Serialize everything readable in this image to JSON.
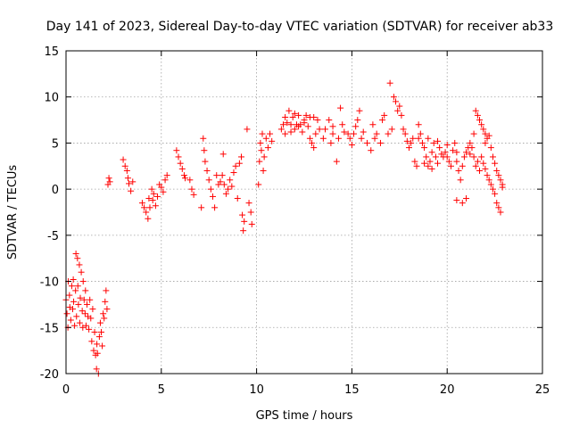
{
  "chart_data": {
    "type": "scatter",
    "title": "Day 141 of 2023, Sidereal Day-to-day VTEC variation (SDTVAR) for receiver ab33",
    "xlabel": "GPS time / hours",
    "ylabel": "SDTVAR / TECUs",
    "xlim": [
      0,
      25
    ],
    "ylim": [
      -20,
      15
    ],
    "xticks": [
      "0",
      "5",
      "10",
      "15",
      "20",
      "25"
    ],
    "yticks": [
      "-20",
      "-15",
      "-10",
      "-5",
      "0",
      "5",
      "10",
      "15"
    ],
    "grid": true,
    "marker": "+",
    "color": "#ff0000",
    "series": [
      {
        "name": "SDTVAR",
        "points": [
          [
            0.0,
            -12.0
          ],
          [
            0.05,
            -13.5
          ],
          [
            0.1,
            -15.0
          ],
          [
            0.12,
            -10.0
          ],
          [
            0.18,
            -11.5
          ],
          [
            0.2,
            -12.8
          ],
          [
            0.25,
            -14.2
          ],
          [
            0.3,
            -10.5
          ],
          [
            0.35,
            -13.0
          ],
          [
            0.38,
            -9.8
          ],
          [
            0.4,
            -12.2
          ],
          [
            0.45,
            -14.8
          ],
          [
            0.5,
            -11.0
          ],
          [
            0.52,
            -7.0
          ],
          [
            0.55,
            -13.8
          ],
          [
            0.6,
            -7.5
          ],
          [
            0.62,
            -10.5
          ],
          [
            0.65,
            -12.5
          ],
          [
            0.7,
            -8.2
          ],
          [
            0.72,
            -14.5
          ],
          [
            0.75,
            -11.8
          ],
          [
            0.8,
            -9.0
          ],
          [
            0.85,
            -13.2
          ],
          [
            0.88,
            -15.0
          ],
          [
            0.9,
            -10.0
          ],
          [
            0.95,
            -12.0
          ],
          [
            1.0,
            -13.5
          ],
          [
            1.02,
            -11.0
          ],
          [
            1.05,
            -14.8
          ],
          [
            1.1,
            -12.5
          ],
          [
            1.15,
            -13.8
          ],
          [
            1.2,
            -15.2
          ],
          [
            1.25,
            -12.0
          ],
          [
            1.3,
            -14.0
          ],
          [
            1.35,
            -16.5
          ],
          [
            1.4,
            -13.0
          ],
          [
            1.45,
            -17.5
          ],
          [
            1.5,
            -15.5
          ],
          [
            1.55,
            -18.0
          ],
          [
            1.6,
            -19.5
          ],
          [
            1.62,
            -16.8
          ],
          [
            1.65,
            -17.8
          ],
          [
            1.7,
            -20.0
          ],
          [
            1.75,
            -16.0
          ],
          [
            1.8,
            -14.5
          ],
          [
            1.85,
            -15.5
          ],
          [
            1.9,
            -17.0
          ],
          [
            1.95,
            -13.5
          ],
          [
            2.0,
            -14.0
          ],
          [
            2.05,
            -12.2
          ],
          [
            2.1,
            -11.0
          ],
          [
            2.15,
            -13.0
          ],
          [
            2.2,
            0.5
          ],
          [
            2.25,
            1.2
          ],
          [
            2.3,
            0.8
          ],
          [
            3.0,
            3.2
          ],
          [
            3.1,
            2.5
          ],
          [
            3.2,
            2.0
          ],
          [
            3.25,
            1.2
          ],
          [
            3.3,
            0.6
          ],
          [
            3.4,
            -0.2
          ],
          [
            3.5,
            0.8
          ],
          [
            4.0,
            -1.5
          ],
          [
            4.1,
            -2.0
          ],
          [
            4.2,
            -2.5
          ],
          [
            4.3,
            -3.2
          ],
          [
            4.35,
            -1.0
          ],
          [
            4.4,
            -2.0
          ],
          [
            4.5,
            0.0
          ],
          [
            4.55,
            -1.2
          ],
          [
            4.6,
            -0.5
          ],
          [
            4.7,
            -1.8
          ],
          [
            4.8,
            -0.8
          ],
          [
            4.9,
            0.5
          ],
          [
            5.0,
            0.2
          ],
          [
            5.1,
            -0.3
          ],
          [
            5.2,
            1.0
          ],
          [
            5.3,
            1.5
          ],
          [
            5.8,
            4.2
          ],
          [
            5.9,
            3.5
          ],
          [
            6.0,
            2.8
          ],
          [
            6.1,
            2.2
          ],
          [
            6.2,
            1.5
          ],
          [
            6.25,
            1.2
          ],
          [
            6.5,
            1.0
          ],
          [
            6.6,
            0.0
          ],
          [
            6.7,
            -0.6
          ],
          [
            7.1,
            -2.0
          ],
          [
            7.2,
            5.5
          ],
          [
            7.25,
            4.2
          ],
          [
            7.3,
            3.0
          ],
          [
            7.4,
            2.0
          ],
          [
            7.5,
            1.0
          ],
          [
            7.6,
            0.0
          ],
          [
            7.7,
            -0.8
          ],
          [
            7.8,
            -2.0
          ],
          [
            7.9,
            1.5
          ],
          [
            8.0,
            0.5
          ],
          [
            8.1,
            0.8
          ],
          [
            8.2,
            1.5
          ],
          [
            8.25,
            3.8
          ],
          [
            8.3,
            0.5
          ],
          [
            8.4,
            -0.5
          ],
          [
            8.5,
            0.0
          ],
          [
            8.6,
            1.0
          ],
          [
            8.7,
            0.3
          ],
          [
            8.8,
            1.8
          ],
          [
            8.9,
            2.5
          ],
          [
            9.0,
            -1.0
          ],
          [
            9.1,
            2.8
          ],
          [
            9.2,
            3.5
          ],
          [
            9.25,
            -2.8
          ],
          [
            9.3,
            -4.5
          ],
          [
            9.35,
            -3.5
          ],
          [
            9.5,
            6.5
          ],
          [
            9.6,
            -1.5
          ],
          [
            9.7,
            -2.5
          ],
          [
            9.75,
            -3.8
          ],
          [
            10.1,
            0.5
          ],
          [
            10.15,
            3.0
          ],
          [
            10.2,
            5.0
          ],
          [
            10.25,
            4.2
          ],
          [
            10.3,
            6.0
          ],
          [
            10.35,
            2.0
          ],
          [
            10.4,
            3.5
          ],
          [
            10.5,
            5.5
          ],
          [
            10.6,
            4.5
          ],
          [
            10.7,
            6.0
          ],
          [
            10.8,
            5.2
          ],
          [
            11.3,
            6.5
          ],
          [
            11.4,
            7.0
          ],
          [
            11.5,
            6.0
          ],
          [
            11.6,
            7.2
          ],
          [
            11.7,
            8.5
          ],
          [
            11.8,
            7.0
          ],
          [
            11.9,
            7.8
          ],
          [
            12.0,
            6.5
          ],
          [
            12.1,
            7.0
          ],
          [
            12.2,
            8.0
          ],
          [
            12.3,
            7.0
          ],
          [
            12.4,
            6.2
          ],
          [
            12.5,
            7.5
          ],
          [
            12.6,
            8.0
          ],
          [
            12.7,
            6.8
          ],
          [
            12.8,
            5.5
          ],
          [
            12.9,
            5.0
          ],
          [
            13.0,
            4.5
          ],
          [
            13.1,
            6.0
          ],
          [
            13.2,
            7.5
          ],
          [
            13.3,
            6.5
          ],
          [
            13.5,
            5.5
          ],
          [
            13.6,
            6.5
          ],
          [
            13.8,
            7.5
          ],
          [
            13.9,
            5.0
          ],
          [
            14.0,
            6.0
          ],
          [
            14.2,
            3.0
          ],
          [
            14.3,
            5.5
          ],
          [
            14.4,
            8.8
          ],
          [
            14.5,
            7.0
          ],
          [
            14.6,
            6.2
          ],
          [
            14.8,
            6.0
          ],
          [
            14.9,
            5.5
          ],
          [
            15.0,
            4.8
          ],
          [
            15.1,
            6.0
          ],
          [
            15.3,
            7.5
          ],
          [
            15.4,
            8.5
          ],
          [
            15.5,
            5.5
          ],
          [
            15.6,
            6.2
          ],
          [
            15.8,
            5.0
          ],
          [
            16.0,
            4.2
          ],
          [
            16.1,
            7.0
          ],
          [
            16.3,
            6.0
          ],
          [
            16.5,
            5.0
          ],
          [
            16.7,
            8.0
          ],
          [
            16.9,
            6.0
          ],
          [
            17.0,
            11.5
          ],
          [
            17.2,
            10.0
          ],
          [
            17.3,
            9.5
          ],
          [
            17.4,
            8.5
          ],
          [
            17.5,
            9.0
          ],
          [
            17.6,
            8.0
          ],
          [
            17.7,
            6.5
          ],
          [
            17.8,
            6.0
          ],
          [
            17.9,
            5.2
          ],
          [
            18.0,
            4.5
          ],
          [
            18.1,
            5.0
          ],
          [
            18.2,
            5.5
          ],
          [
            18.3,
            3.0
          ],
          [
            18.4,
            2.5
          ],
          [
            18.5,
            7.0
          ],
          [
            18.6,
            6.0
          ],
          [
            18.7,
            5.0
          ],
          [
            18.8,
            4.5
          ],
          [
            18.9,
            3.5
          ],
          [
            19.0,
            2.5
          ],
          [
            19.1,
            3.0
          ],
          [
            19.2,
            4.0
          ],
          [
            19.3,
            5.0
          ],
          [
            19.4,
            3.5
          ],
          [
            19.5,
            2.8
          ],
          [
            19.6,
            4.5
          ],
          [
            19.7,
            3.8
          ],
          [
            19.8,
            3.5
          ],
          [
            19.9,
            4.0
          ],
          [
            20.0,
            3.5
          ],
          [
            20.1,
            3.0
          ],
          [
            20.2,
            2.5
          ],
          [
            20.3,
            4.2
          ],
          [
            20.4,
            5.0
          ],
          [
            20.5,
            3.0
          ],
          [
            20.6,
            2.0
          ],
          [
            20.7,
            1.0
          ],
          [
            20.8,
            2.5
          ],
          [
            20.9,
            3.5
          ],
          [
            21.0,
            4.0
          ],
          [
            21.1,
            4.5
          ],
          [
            21.2,
            5.0
          ],
          [
            21.3,
            4.5
          ],
          [
            21.4,
            3.5
          ],
          [
            21.5,
            2.5
          ],
          [
            21.6,
            3.0
          ],
          [
            21.7,
            2.0
          ],
          [
            21.8,
            3.5
          ],
          [
            21.9,
            2.8
          ],
          [
            22.0,
            2.2
          ],
          [
            22.1,
            1.5
          ],
          [
            22.2,
            1.0
          ],
          [
            22.3,
            0.5
          ],
          [
            22.4,
            0.0
          ],
          [
            22.5,
            -0.5
          ],
          [
            22.6,
            -1.5
          ],
          [
            22.7,
            -2.0
          ],
          [
            22.8,
            -2.5
          ],
          [
            22.9,
            0.5
          ],
          [
            20.8,
            -1.5
          ],
          [
            21.0,
            -1.0
          ],
          [
            20.5,
            -1.2
          ],
          [
            21.5,
            8.5
          ],
          [
            21.6,
            8.0
          ],
          [
            21.7,
            7.5
          ],
          [
            21.8,
            7.0
          ],
          [
            21.9,
            6.5
          ],
          [
            22.0,
            6.0
          ],
          [
            22.1,
            5.5
          ],
          [
            22.2,
            5.8
          ],
          [
            22.3,
            4.5
          ],
          [
            22.4,
            3.5
          ],
          [
            22.5,
            2.8
          ],
          [
            22.6,
            2.0
          ],
          [
            22.7,
            1.5
          ],
          [
            22.8,
            1.0
          ],
          [
            22.9,
            0.2
          ],
          [
            11.5,
            7.8
          ],
          [
            12.0,
            8.2
          ],
          [
            12.5,
            7.2
          ],
          [
            13.0,
            7.8
          ],
          [
            11.8,
            6.2
          ],
          [
            12.2,
            6.8
          ],
          [
            12.8,
            7.8
          ],
          [
            14.0,
            6.8
          ],
          [
            15.2,
            6.8
          ],
          [
            16.2,
            5.5
          ],
          [
            16.6,
            7.5
          ],
          [
            17.1,
            6.5
          ],
          [
            18.5,
            5.5
          ],
          [
            19.0,
            5.5
          ],
          [
            19.5,
            5.2
          ],
          [
            20.0,
            4.8
          ],
          [
            19.2,
            2.2
          ],
          [
            18.8,
            2.8
          ],
          [
            20.5,
            4.0
          ],
          [
            21.2,
            3.8
          ],
          [
            21.4,
            6.0
          ],
          [
            22.0,
            5.0
          ]
        ]
      }
    ]
  }
}
